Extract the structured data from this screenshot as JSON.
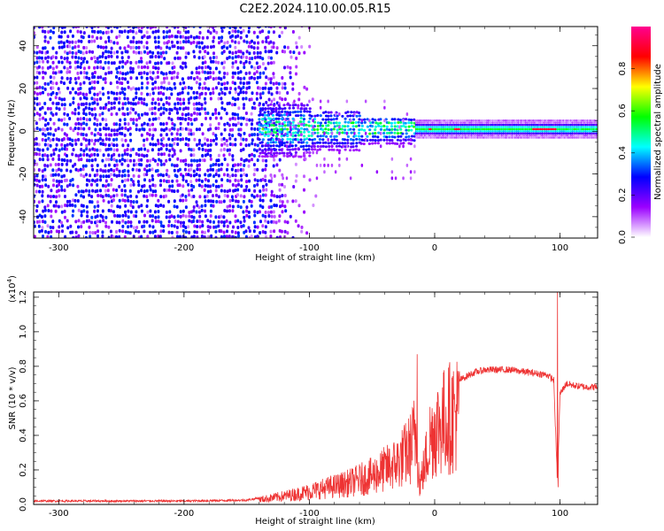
{
  "title": "C2E2.2024.110.00.05.R15",
  "chart_data": [
    {
      "type": "heatmap",
      "xlabel": "Height of straight line (km)",
      "ylabel": "Frequency (Hz)",
      "xlim": [
        -320,
        130
      ],
      "ylim": [
        -50,
        49
      ],
      "xticks": [
        -300,
        -200,
        -100,
        0,
        100
      ],
      "xtick_labels": [
        "-300",
        "-200",
        "-100",
        "0",
        "100"
      ],
      "yticks": [
        -40,
        -20,
        0,
        20,
        40
      ],
      "ytick_labels": [
        "-40",
        "-20",
        "0",
        "20",
        "40"
      ],
      "colorbar": {
        "label": "Normalized spectral amplitude",
        "range": [
          0,
          1
        ],
        "ticks": [
          0,
          0.2,
          0.4,
          0.6,
          0.8
        ],
        "tick_labels": [
          "0.0",
          "0.2",
          "0.4",
          "0.6",
          "0.8"
        ],
        "colors": [
          "#ffffff",
          "#9b00ff",
          "#0000ff",
          "#00ffff",
          "#00ff00",
          "#ffff00",
          "#ff0000",
          "#ff0090"
        ]
      },
      "regions": [
        {
          "x": [
            -320,
            -140
          ],
          "pattern": "broadband noise, amplitude ~0.2-0.3"
        },
        {
          "x": [
            -140,
            -100
          ],
          "pattern": "fading noise"
        },
        {
          "x": [
            -100,
            -15
          ],
          "center_hz": 1,
          "pattern": "carrier band, amplitude ~0.3-0.6"
        },
        {
          "x": [
            -15,
            130
          ],
          "center_hz": 1,
          "pattern": "narrow carrier, amplitude ~0.4-0.9"
        }
      ]
    },
    {
      "type": "line",
      "xlabel": "Height of straight line (km)",
      "ylabel": "SNR (10 * v/v)",
      "yscale_label": "(x10",
      "yscale_exp": "4",
      "yscale_close": ")",
      "xlim": [
        -320,
        130
      ],
      "ylim": [
        0,
        1.23
      ],
      "xticks": [
        -300,
        -200,
        -100,
        0,
        100
      ],
      "xtick_labels": [
        "-300",
        "-200",
        "-100",
        "0",
        "100"
      ],
      "yticks": [
        0,
        0.2,
        0.4,
        0.6,
        0.8,
        1.0,
        1.2
      ],
      "ytick_labels": [
        "0.0",
        "0.2",
        "0.4",
        "0.6",
        "0.8",
        "1.0",
        "1.2"
      ],
      "color": "#ee3333",
      "series": [
        {
          "x": [
            -320,
            -250,
            -200,
            -150,
            -130,
            -110,
            -90,
            -70,
            -50,
            -30,
            -20,
            -15,
            -12,
            -8,
            -4,
            0,
            10,
            20,
            30,
            40,
            50,
            60,
            70,
            80,
            90,
            95,
            98,
            100,
            105,
            110,
            120,
            130
          ],
          "y": [
            0.02,
            0.02,
            0.02,
            0.025,
            0.05,
            0.08,
            0.12,
            0.16,
            0.22,
            0.32,
            0.42,
            0.55,
            0.15,
            0.3,
            0.5,
            0.58,
            0.66,
            0.72,
            0.76,
            0.78,
            0.78,
            0.78,
            0.77,
            0.76,
            0.75,
            0.72,
            0.12,
            0.64,
            0.7,
            0.69,
            0.68,
            0.68
          ],
          "spikes": [
            {
              "x": -14,
              "y": 0.87
            },
            {
              "x": 98,
              "y": 1.23
            },
            {
              "x": 98.5,
              "y": 0.1
            }
          ]
        }
      ]
    }
  ]
}
